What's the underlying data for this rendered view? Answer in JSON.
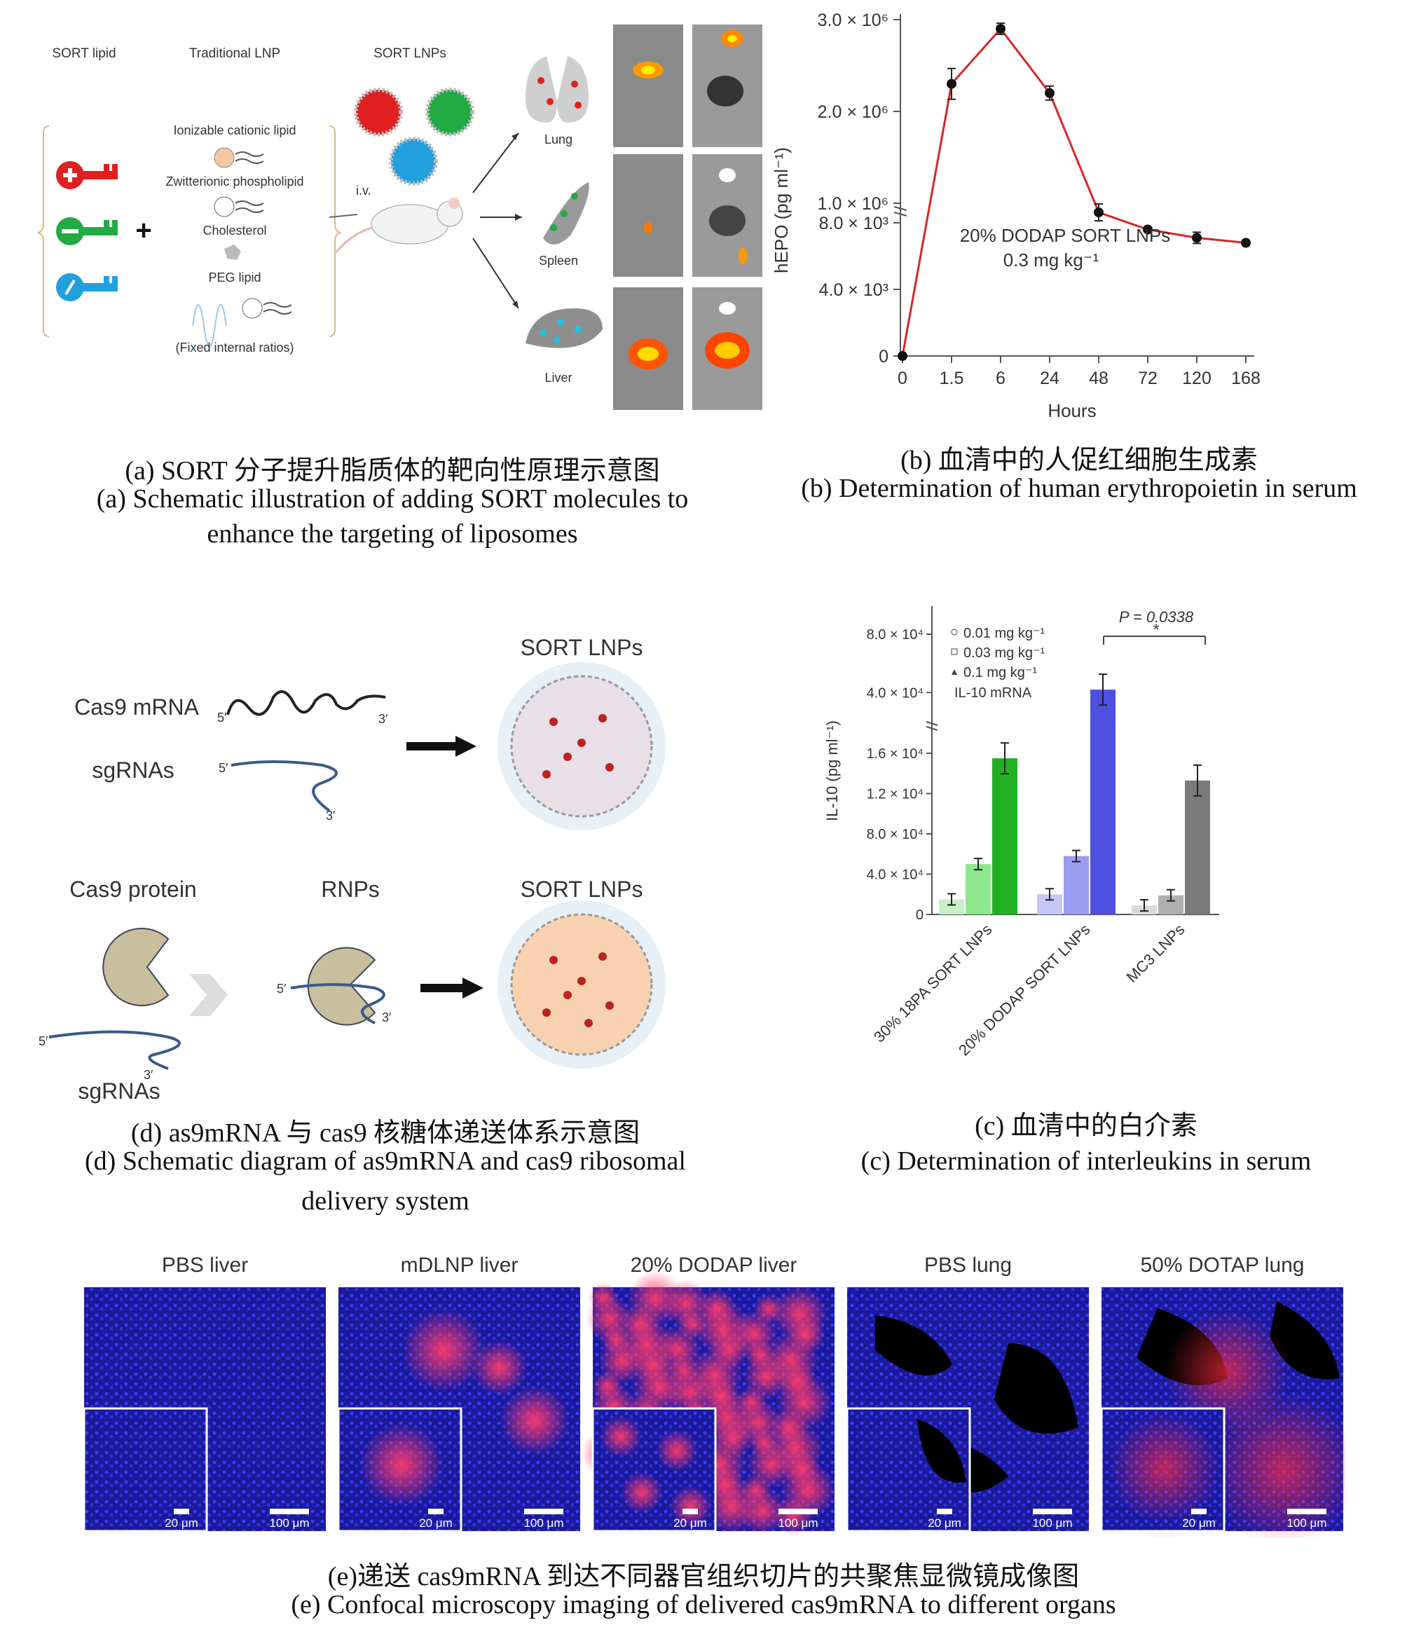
{
  "panel_a": {
    "col_sort_lipid": "SORT lipid",
    "col_traditional": "Traditional LNP",
    "col_sort_lnps": "SORT LNPs",
    "ionizable": "Ionizable cationic lipid",
    "zwitterionic": "Zwitterionic phospholipid",
    "cholesterol": "Cholesterol",
    "peg": "PEG lipid",
    "fixed": "(Fixed internal ratios)",
    "iv": "i.v.",
    "lung": "Lung",
    "spleen": "Spleen",
    "liver": "Liver",
    "caption_cn": "(a) SORT 分子提升脂质体的靶向性原理示意图",
    "caption_en_1": "(a) Schematic illustration of adding SORT molecules to",
    "caption_en_2": "enhance the targeting of liposomes"
  },
  "panel_b": {
    "ylabel": "hEPO (pg ml⁻¹)",
    "xlabel": "Hours",
    "annotation_1": "20% DODAP SORT LNPs",
    "annotation_2": "0.3 mg kg⁻¹",
    "caption_cn": "(b)  血清中的人促红细胞生成素",
    "caption_en": "(b) Determination of human erythropoietin in serum"
  },
  "panel_c": {
    "ylabel": "IL-10 (pg ml⁻¹)",
    "legend": [
      "0.01 mg kg⁻¹",
      "0.03 mg kg⁻¹",
      "0.1 mg kg⁻¹",
      "IL-10 mRNA"
    ],
    "pvalue": "P = 0.0338",
    "star": "*",
    "caption_cn": "(c)  血清中的白介素",
    "caption_en": "(c) Determination of interleukins in serum"
  },
  "panel_d": {
    "cas9_mrna": "Cas9 mRNA",
    "sgrnas_1": "sgRNAs",
    "sort_lnps_1": "SORT LNPs",
    "cas9_protein": "Cas9 protein",
    "rnps": "RNPs",
    "sort_lnps_2": "SORT LNPs",
    "sgrnas_2": "sgRNAs",
    "p5": "5′",
    "p3": "3′",
    "caption_cn": "(d) as9mRNA 与 cas9  核糖体递送体系示意图",
    "caption_en_1": "(d) Schematic diagram of as9mRNA and cas9 ribosomal",
    "caption_en_2": "delivery system"
  },
  "panel_e": {
    "titles": [
      "PBS liver",
      "mDLNP liver",
      "20% DODAP liver",
      "PBS lung",
      "50% DOTAP lung"
    ],
    "scale_small": "20 μm",
    "scale_large": "100 μm",
    "caption_cn": "(e)递送 cas9mRNA 到达不同器官组织切片的共聚焦显微镜成像图",
    "caption_en": "(e) Confocal microscopy imaging of delivered cas9mRNA to different organs"
  },
  "chart_data": [
    {
      "type": "line",
      "x": [
        "0",
        "1.5",
        "6",
        "24",
        "48",
        "72",
        "120",
        "168"
      ],
      "y": [
        0,
        2300000,
        2900000,
        2200000,
        900000,
        7600,
        7100,
        6800
      ],
      "y_ticks": [
        "0",
        "4.0 × 10³",
        "8.0 × 10³",
        "1.0 × 10⁶",
        "2.0 × 10⁶",
        "3.0 × 10⁶"
      ],
      "xlabel": "Hours",
      "ylabel": "hEPO (pg ml⁻¹)",
      "broken_axis": true,
      "color": "#d62728"
    },
    {
      "type": "bar",
      "categories": [
        "30% 18PA SORT LNPs",
        "20% DODAP SORT LNPs",
        "MC3 LNPs"
      ],
      "series": [
        {
          "name": "0.01 mg kg⁻¹",
          "values": [
            1500,
            2000,
            900
          ]
        },
        {
          "name": "0.03 mg kg⁻¹",
          "values": [
            5000,
            5800,
            1900
          ]
        },
        {
          "name": "0.1 mg kg⁻¹",
          "values": [
            15500,
            42000,
            13300
          ]
        }
      ],
      "y_ticks": [
        "0",
        "4.0 × 10⁴",
        "8.0 × 10⁴",
        "1.2 × 10⁴",
        "1.6 × 10⁴",
        "4.0 × 10⁴",
        "8.0 × 10⁴"
      ],
      "ylabel": "IL-10 (pg ml⁻¹)",
      "broken_axis": true
    }
  ]
}
